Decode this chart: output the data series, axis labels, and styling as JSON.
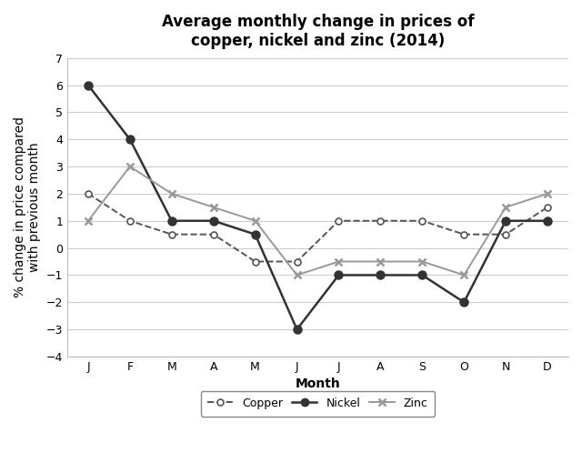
{
  "title": "Average monthly change in prices of\ncopper, nickel and zinc (2014)",
  "xlabel": "Month",
  "ylabel": "% change in price compared\nwith previous month",
  "months": [
    "J",
    "F",
    "M",
    "A",
    "M",
    "J",
    "J",
    "A",
    "S",
    "O",
    "N",
    "D"
  ],
  "copper": [
    2,
    1,
    0.5,
    0.5,
    -0.5,
    -0.5,
    1,
    1,
    1,
    0.5,
    0.5,
    1.5
  ],
  "nickel": [
    6,
    4,
    1,
    1,
    0.5,
    -3,
    -1,
    -1,
    -1,
    -2,
    1,
    1
  ],
  "zinc": [
    1,
    3,
    2,
    1.5,
    1,
    -1,
    -0.5,
    -0.5,
    -0.5,
    -1,
    1.5,
    2
  ],
  "ylim": [
    -4,
    7
  ],
  "yticks": [
    -4,
    -3,
    -2,
    -1,
    0,
    1,
    2,
    3,
    4,
    5,
    6,
    7
  ],
  "copper_color": "#555555",
  "nickel_color": "#333333",
  "zinc_color": "#999999",
  "grid_color": "#cccccc",
  "background_color": "#ffffff",
  "title_fontsize": 12,
  "axis_label_fontsize": 10,
  "tick_fontsize": 9,
  "legend_fontsize": 9
}
